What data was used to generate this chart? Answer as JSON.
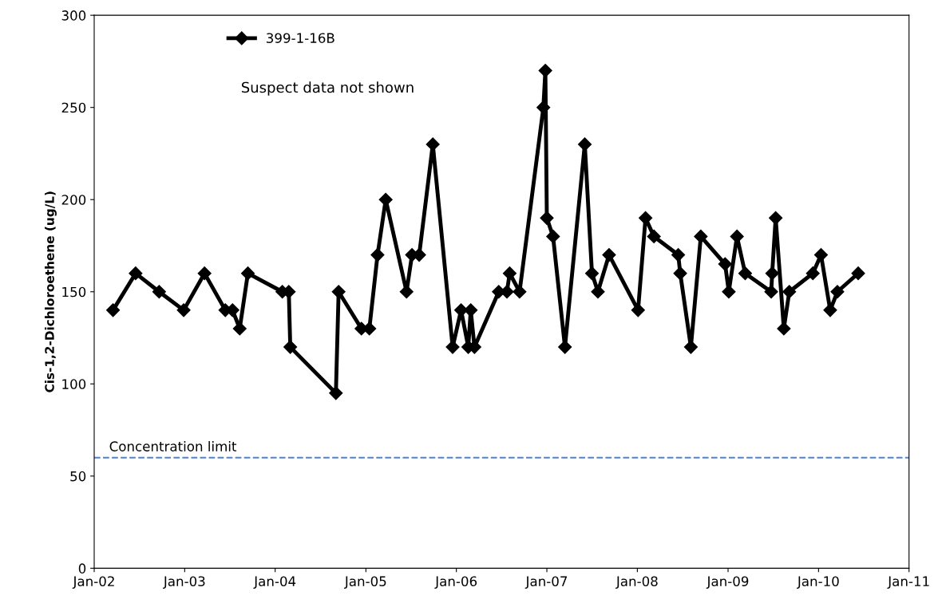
{
  "chart_data": {
    "type": "line",
    "ylabel": "Cis-1,2-Dichloroethene (ug/L)",
    "series": [
      {
        "name": "399-1-16B",
        "color": "#000000",
        "marker": "diamond",
        "line_style": "solid",
        "x": [
          "2002-03-18",
          "2002-06-17",
          "2002-09-20",
          "2002-12-28",
          "2003-03-22",
          "2003-06-14",
          "2003-07-13",
          "2003-08-11",
          "2003-09-13",
          "2004-01-30",
          "2004-02-25",
          "2004-03-02",
          "2004-09-02",
          "2004-09-13",
          "2004-12-14",
          "2005-01-15",
          "2005-02-17",
          "2005-03-22",
          "2005-06-14",
          "2005-07-06",
          "2005-08-04",
          "2005-09-28",
          "2005-12-17",
          "2006-01-20",
          "2006-02-18",
          "2006-02-28",
          "2006-03-15",
          "2006-06-21",
          "2006-07-24",
          "2006-08-04",
          "2006-09-13",
          "2006-12-18",
          "2006-12-26",
          "2007-01-01",
          "2007-01-26",
          "2007-03-15",
          "2007-06-03",
          "2007-07-02",
          "2007-07-26",
          "2007-09-09",
          "2008-01-04",
          "2008-02-03",
          "2008-03-08",
          "2008-06-14",
          "2008-06-22",
          "2008-08-04",
          "2008-09-13",
          "2008-12-20",
          "2009-01-04",
          "2009-02-06",
          "2009-03-11",
          "2009-06-24",
          "2009-06-28",
          "2009-07-12",
          "2009-08-14",
          "2009-09-05",
          "2009-12-09",
          "2010-01-11",
          "2010-02-17",
          "2010-03-18",
          "2010-06-10"
        ],
        "values": [
          140,
          160,
          150,
          140,
          160,
          140,
          140,
          130,
          160,
          150,
          150,
          120,
          95,
          150,
          130,
          130,
          170,
          200,
          150,
          170,
          170,
          230,
          120,
          140,
          120,
          140,
          120,
          150,
          150,
          160,
          150,
          250,
          270,
          190,
          180,
          120,
          230,
          160,
          150,
          170,
          140,
          190,
          180,
          170,
          160,
          120,
          180,
          165,
          150,
          180,
          160,
          150,
          160,
          190,
          130,
          150,
          160,
          170,
          140,
          150,
          160
        ]
      }
    ],
    "xlim": [
      "2002-01-01",
      "2011-01-01"
    ],
    "xticks": [
      {
        "value": "2002-01-01",
        "label": "Jan-02"
      },
      {
        "value": "2003-01-01",
        "label": "Jan-03"
      },
      {
        "value": "2004-01-01",
        "label": "Jan-04"
      },
      {
        "value": "2005-01-01",
        "label": "Jan-05"
      },
      {
        "value": "2006-01-01",
        "label": "Jan-06"
      },
      {
        "value": "2007-01-01",
        "label": "Jan-07"
      },
      {
        "value": "2008-01-01",
        "label": "Jan-08"
      },
      {
        "value": "2009-01-01",
        "label": "Jan-09"
      },
      {
        "value": "2010-01-01",
        "label": "Jan-10"
      },
      {
        "value": "2011-01-01",
        "label": "Jan-11"
      }
    ],
    "ylim": [
      0,
      300
    ],
    "yticks": [
      0,
      50,
      100,
      150,
      200,
      250,
      300
    ],
    "ref_lines": [
      {
        "axis": "y",
        "value": 60,
        "label": "Concentration limit",
        "color": "#4f81d9",
        "line_style": "dashed"
      }
    ],
    "annotations": [
      "Suspect data not shown"
    ],
    "grid": false,
    "legend": "top left"
  }
}
